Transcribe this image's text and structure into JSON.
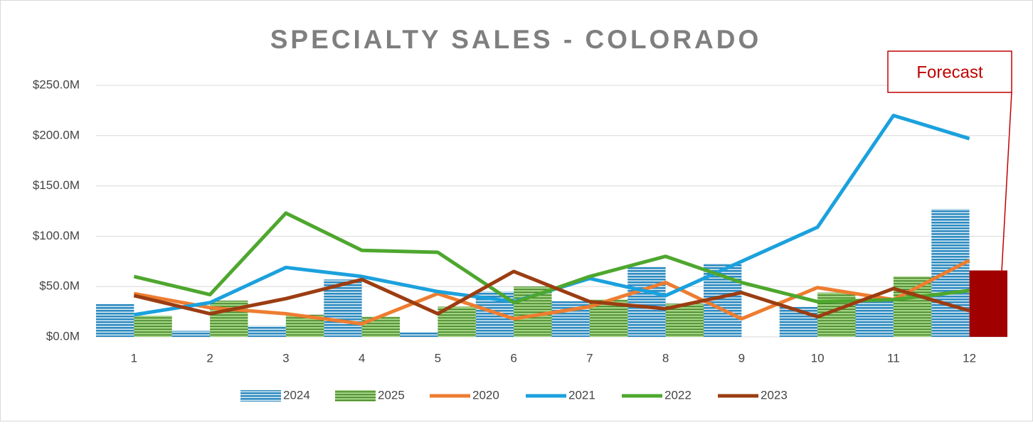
{
  "chart_data": {
    "type": "bar-line",
    "title": "SPECIALTY SALES - COLORADO",
    "categories": [
      "1",
      "2",
      "3",
      "4",
      "5",
      "6",
      "7",
      "8",
      "9",
      "10",
      "11",
      "12"
    ],
    "series": [
      {
        "name": "2024",
        "type": "bar",
        "color": "#2e8bc0",
        "values": [
          33,
          6,
          11,
          57,
          5,
          45,
          36,
          70,
          73,
          30,
          37,
          127
        ]
      },
      {
        "name": "2025",
        "type": "bar",
        "color": "#5fa83a",
        "values": [
          21,
          36,
          22,
          20,
          30,
          50,
          37,
          33,
          null,
          44,
          60,
          66
        ],
        "point_colors": [
          null,
          null,
          null,
          null,
          null,
          null,
          null,
          null,
          null,
          null,
          null,
          "#a00000"
        ]
      },
      {
        "name": "2020",
        "type": "line",
        "color": "#ed7d31",
        "values": [
          43,
          29,
          23,
          13,
          43,
          18,
          30,
          54,
          18,
          49,
          37,
          76
        ]
      },
      {
        "name": "2021",
        "type": "line",
        "color": "#1ba1dd",
        "values": [
          22,
          34,
          69,
          60,
          45,
          35,
          58,
          41,
          75,
          109,
          220,
          197
        ]
      },
      {
        "name": "2022",
        "type": "line",
        "color": "#4ea72e",
        "values": [
          60,
          42,
          123,
          86,
          84,
          34,
          60,
          80,
          54,
          35,
          37,
          46
        ]
      },
      {
        "name": "2023",
        "type": "line",
        "color": "#9b3d12",
        "values": [
          41,
          23,
          38,
          57,
          23,
          65,
          35,
          28,
          44,
          20,
          48,
          26
        ]
      }
    ],
    "ylim": [
      0,
      250
    ],
    "yticks": [
      {
        "value": 0,
        "label": "$0.0M"
      },
      {
        "value": 50,
        "label": "$50.0M"
      },
      {
        "value": 100,
        "label": "$100.0M"
      },
      {
        "value": 150,
        "label": "$150.0M"
      },
      {
        "value": 200,
        "label": "$200.0M"
      },
      {
        "value": 250,
        "label": "$250.0M"
      }
    ],
    "grid": true,
    "legend": "bottom",
    "annotations": [
      {
        "text": "Forecast",
        "color": "#c00000"
      }
    ]
  }
}
